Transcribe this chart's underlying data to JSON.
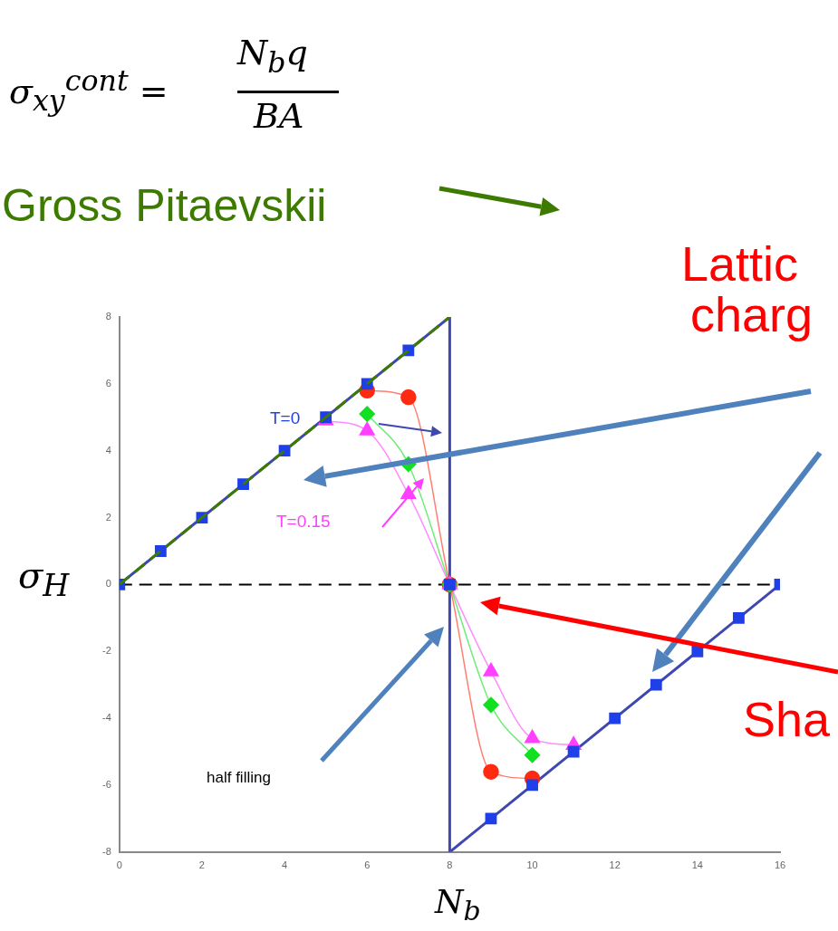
{
  "chart_data": {
    "type": "scatter",
    "xlabel": "N$_{b}$",
    "ylabel": "σ$_{H}$",
    "xlim": [
      0,
      16
    ],
    "xticks": [
      0,
      2,
      4,
      6,
      8,
      10,
      12,
      14,
      16
    ],
    "ylim": [
      -8,
      8
    ],
    "yticks": [
      -8,
      -6,
      -4,
      -2,
      0,
      2,
      4,
      6,
      8
    ],
    "grid": false,
    "series": [
      {
        "type": "line",
        "color": "#3d7a00",
        "line_style": "dashed",
        "marker": "none",
        "name": "Gross Pitaevskii",
        "x": [
          0,
          8
        ],
        "values": [
          0,
          8
        ]
      },
      {
        "type": "line",
        "color": "#3f48b0",
        "marker": "none",
        "x": [
          0,
          8,
          8,
          16
        ],
        "values": [
          0,
          8,
          -8,
          0
        ]
      },
      {
        "type": "line",
        "color": "#ff2a10",
        "marker": "circle",
        "x": [
          6,
          7,
          8,
          9,
          10
        ],
        "values": [
          5.8,
          5.6,
          0,
          -5.6,
          -5.8
        ]
      },
      {
        "type": "line",
        "color": "#10e020",
        "marker": "diamond",
        "x": [
          6,
          7,
          8,
          9,
          10
        ],
        "values": [
          5.1,
          3.6,
          0,
          -3.6,
          -5.1
        ]
      },
      {
        "type": "line",
        "color": "#ff40ff",
        "marker": "triangle",
        "name": "T=0.15",
        "x": [
          5,
          6,
          7,
          8,
          9,
          10,
          11
        ],
        "values": [
          4.9,
          4.6,
          2.7,
          0,
          -2.6,
          -4.6,
          -4.8
        ]
      },
      {
        "color": "#1f3fe8",
        "marker": "square",
        "name": "T=0",
        "x": [
          0,
          1,
          2,
          3,
          4,
          5,
          6,
          7,
          8,
          9,
          10,
          11,
          12,
          13,
          14,
          15,
          16
        ],
        "values": [
          0,
          1,
          2,
          3,
          4,
          5,
          6,
          7,
          0,
          -7,
          -6,
          -5,
          -4,
          -3,
          -2,
          -1,
          0
        ]
      }
    ],
    "ref_lines": [
      {
        "axis": "y",
        "value": 0,
        "color": "#000000",
        "line_style": "dashed"
      }
    ],
    "annotations": [
      "σ$_{xy}$$^{cont}$ =",
      "N$_{b}$q",
      "BA",
      "half filling",
      "Lattic",
      "charg",
      "Sha"
    ]
  }
}
